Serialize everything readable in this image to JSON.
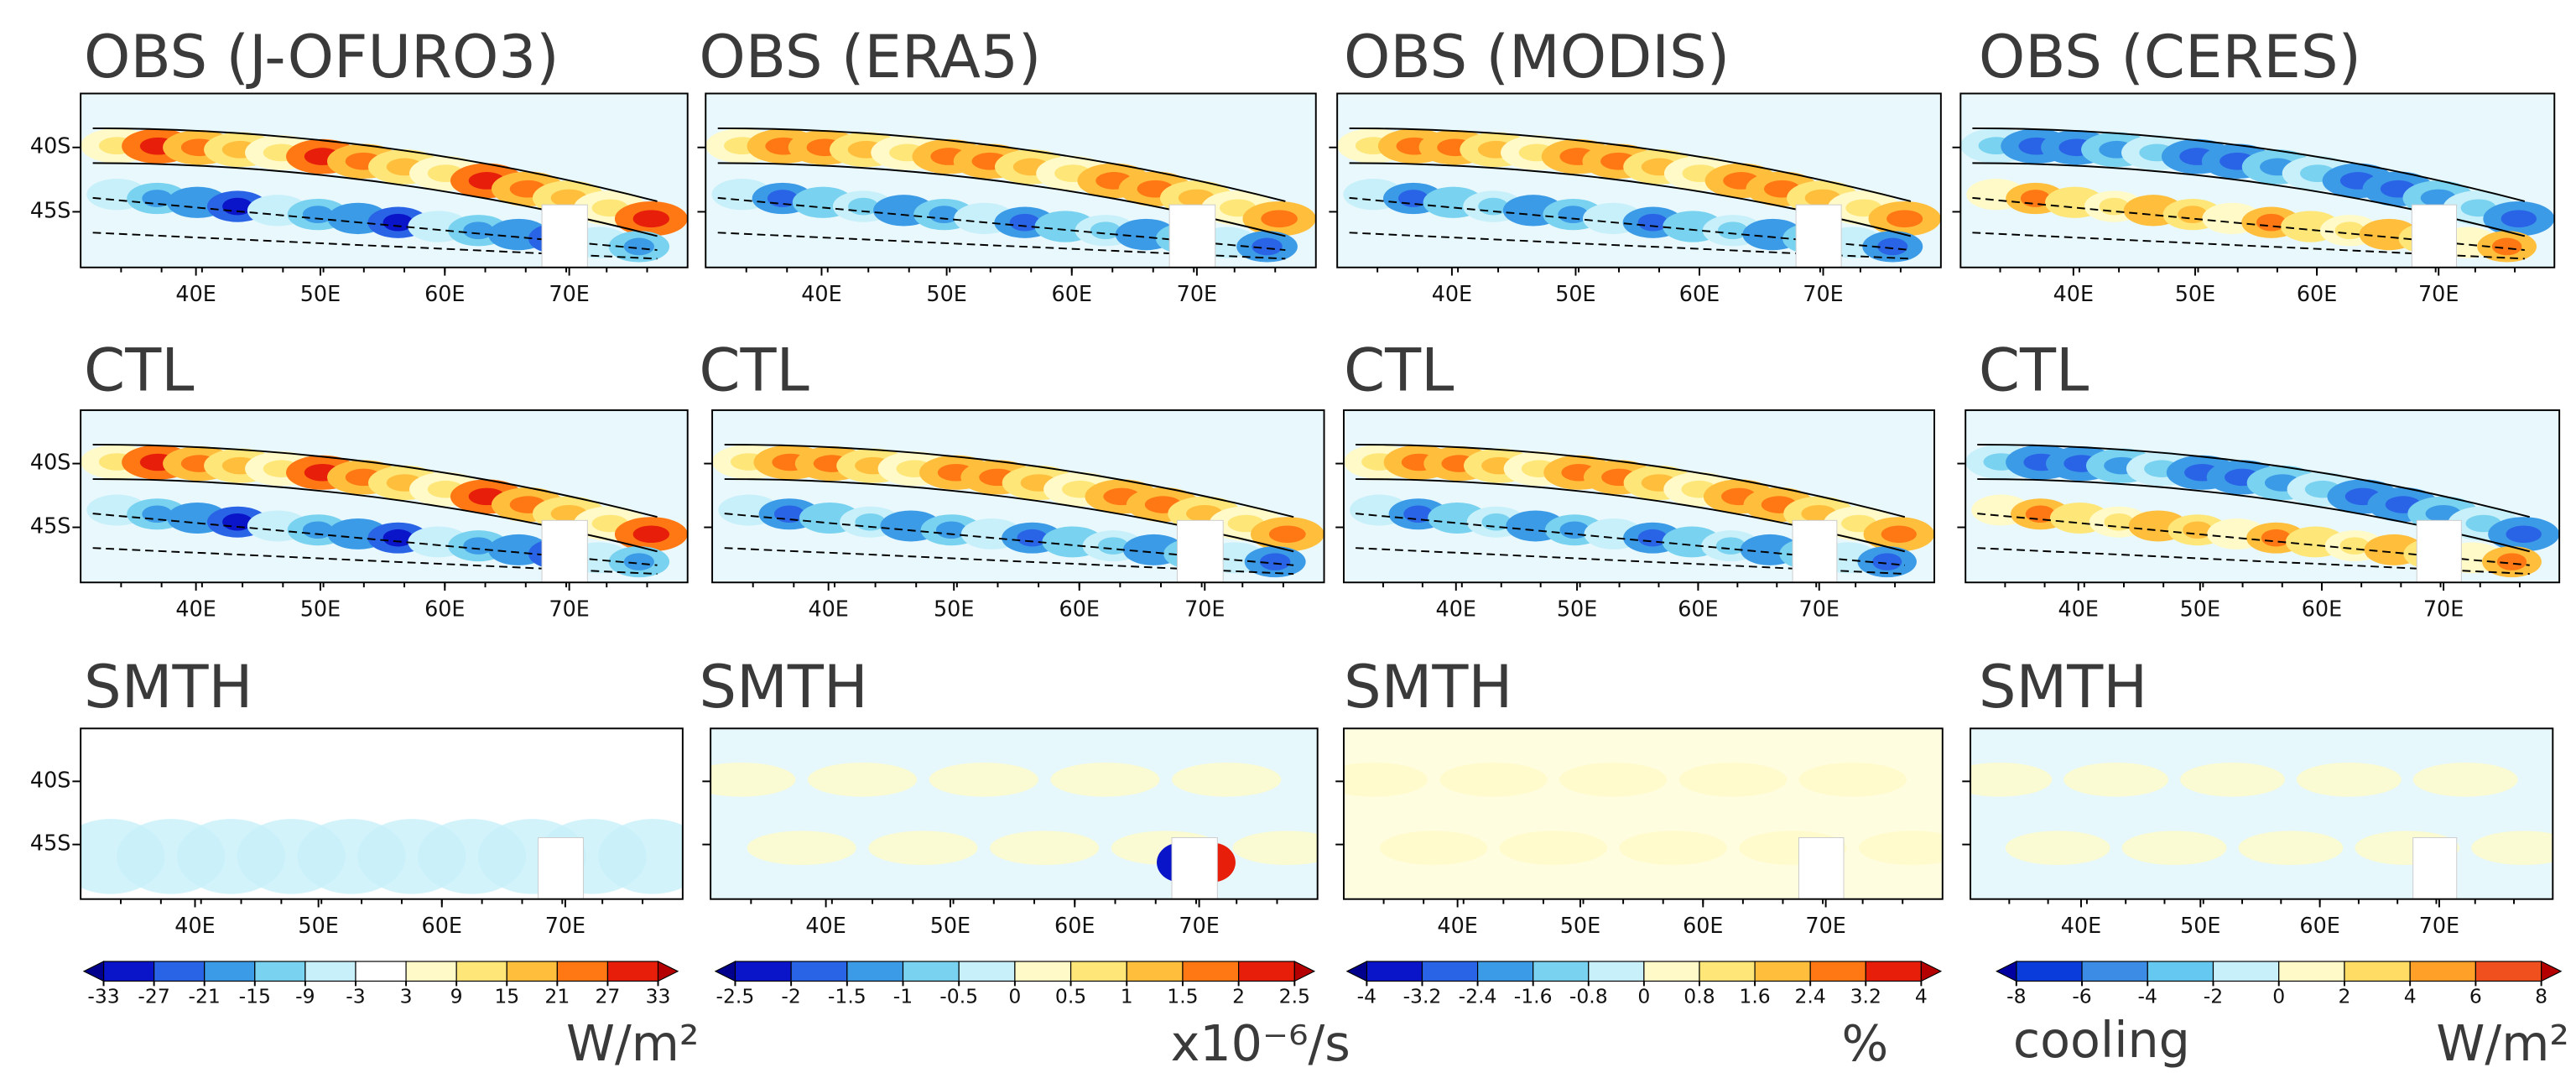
{
  "rows": [
    [
      "OBS (J-OFURO3)",
      "OBS (ERA5)",
      "OBS (MODIS)",
      "OBS (CERES)"
    ],
    [
      "CTL",
      "CTL",
      "CTL",
      "CTL"
    ],
    [
      "SMTH",
      "SMTH",
      "SMTH",
      "SMTH"
    ]
  ],
  "lon_labels": [
    "40E",
    "50E",
    "60E",
    "70E"
  ],
  "lat_labels": [
    "40S",
    "45S"
  ],
  "colorbars": [
    {
      "ticks": [
        -33,
        -27,
        -21,
        -15,
        -9,
        -3,
        3,
        9,
        15,
        21,
        27,
        33
      ],
      "colors": [
        "#0a14c8",
        "#2a64e6",
        "#3c9be6",
        "#78d2f0",
        "#c8f0fa",
        "#ffffff",
        "#fffac8",
        "#ffe678",
        "#ffbe3c",
        "#ff7814",
        "#e61e0a"
      ],
      "under": "#00008c",
      "over": "#b40000",
      "unit": "W/m²"
    },
    {
      "ticks": [
        -2.5,
        -2,
        -1.5,
        -1,
        -0.5,
        0,
        0.5,
        1,
        1.5,
        2,
        2.5
      ],
      "colors": [
        "#0a14c8",
        "#2a64e6",
        "#3c9be6",
        "#78d2f0",
        "#c8f0fa",
        "#fffac8",
        "#ffe678",
        "#ffbe3c",
        "#ff7814",
        "#e61e0a"
      ],
      "under": "#00008c",
      "over": "#b40000",
      "unit": "x10⁻⁶/s"
    },
    {
      "ticks": [
        -4,
        -3.2,
        -2.4,
        -1.6,
        -0.8,
        0,
        0.8,
        1.6,
        2.4,
        3.2,
        4
      ],
      "colors": [
        "#0a14c8",
        "#2a64e6",
        "#3c9be6",
        "#78d2f0",
        "#c8f0fa",
        "#fffac8",
        "#ffe678",
        "#ffbe3c",
        "#ff7814",
        "#e61e0a"
      ],
      "under": "#00008c",
      "over": "#b40000",
      "unit": "%"
    },
    {
      "ticks": [
        -8,
        -6,
        -4,
        -2,
        0,
        2,
        4,
        6,
        8
      ],
      "colors": [
        "#0a3cdc",
        "#3c8ce6",
        "#64c8f0",
        "#c8f0fa",
        "#fffac8",
        "#ffdc64",
        "#ffa028",
        "#f0501e"
      ],
      "under": "#0000a0",
      "over": "#b40000",
      "left_label": "cooling",
      "unit": "W/m²"
    }
  ]
}
